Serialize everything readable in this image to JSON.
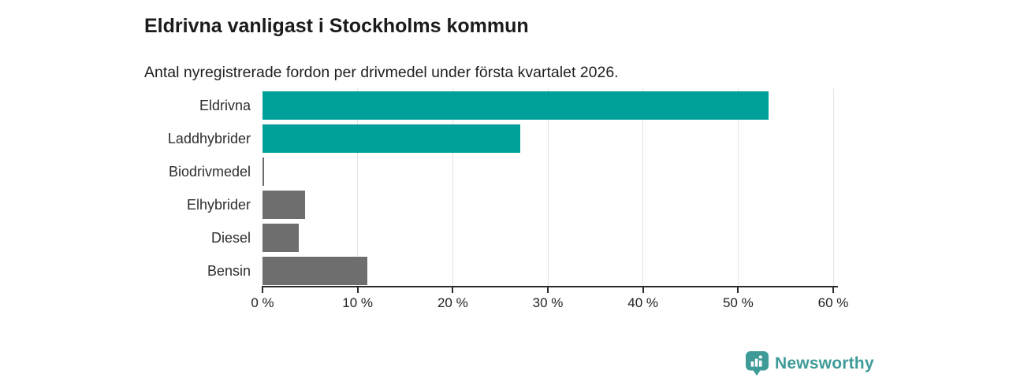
{
  "chart_data": {
    "type": "bar",
    "orientation": "horizontal",
    "title": "Eldrivna vanligast i Stockholms kommun",
    "subtitle": "Antal nyregistrerade fordon per drivmedel under första kvartalet 2026.",
    "categories": [
      "Eldrivna",
      "Laddhybrider",
      "Biodrivmedel",
      "Elhybrider",
      "Diesel",
      "Bensin"
    ],
    "values": [
      53.2,
      27.1,
      0.2,
      4.5,
      3.8,
      11.0
    ],
    "unit": "%",
    "xlim": [
      0,
      60
    ],
    "x_ticks": [
      0,
      10,
      20,
      30,
      40,
      50,
      60
    ],
    "x_tick_labels": [
      "0 %",
      "10 %",
      "20 %",
      "30 %",
      "40 %",
      "50 %",
      "60 %"
    ],
    "grid": "vertical-light",
    "legend": "none",
    "bar_colors": [
      "#00a09a",
      "#00a09a",
      "#6e6e6e",
      "#6e6e6e",
      "#6e6e6e",
      "#6e6e6e"
    ],
    "accent_colors": {
      "teal": "#00a09a",
      "gray": "#6e6e6e"
    }
  },
  "branding": {
    "logo_text": "Newsworthy",
    "brand_color": "#3f9b98",
    "logo_icon": "newsworthy-pin-barchart-icon"
  }
}
